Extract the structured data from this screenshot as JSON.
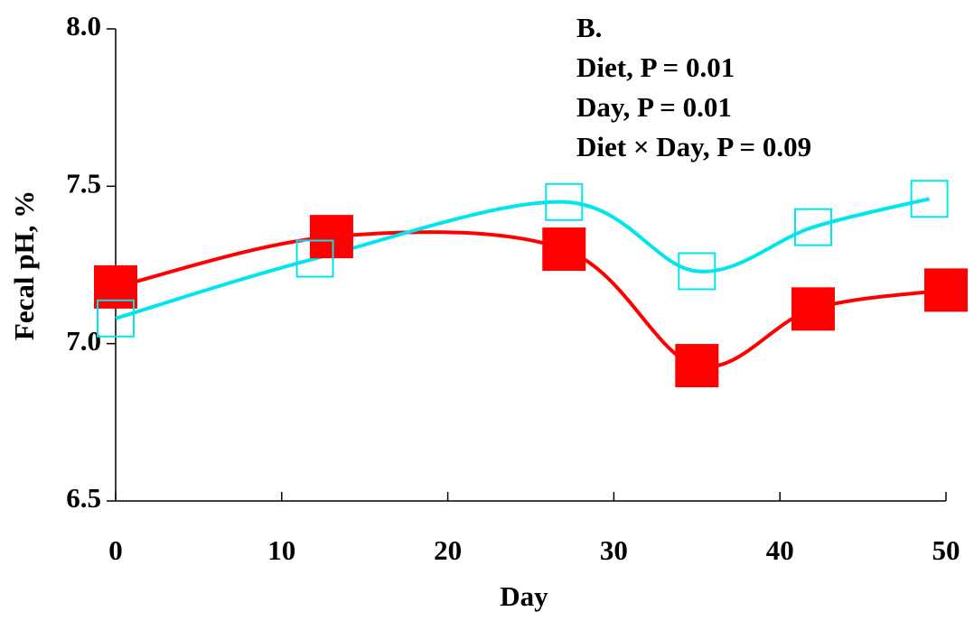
{
  "chart_data": {
    "type": "line",
    "annotations": [
      "B.",
      "Diet, P = 0.01",
      "Day, P = 0.01",
      "Diet × Day, P = 0.09"
    ],
    "xlabel": "Day",
    "ylabel": "Fecal pH, %",
    "xlim": [
      0,
      50
    ],
    "xticks": [
      0,
      10,
      20,
      30,
      40,
      50
    ],
    "ylim": [
      6.5,
      8
    ],
    "yticks": [
      6.5,
      {
        "value": 7,
        "label": "7.0"
      },
      7.5,
      {
        "value": 8,
        "label": "8.0"
      }
    ],
    "series": [
      {
        "color": "#ff0000",
        "marker": "filled-square",
        "x": [
          0,
          13,
          27,
          35,
          42,
          50
        ],
        "values": [
          7.18,
          7.34,
          7.3,
          6.93,
          7.11,
          7.17
        ]
      },
      {
        "color": "#00e5ee",
        "marker": "open-square",
        "x": [
          0,
          12,
          27,
          35,
          42,
          49
        ],
        "values": [
          7.08,
          7.27,
          7.45,
          7.23,
          7.37,
          7.46
        ]
      }
    ]
  }
}
